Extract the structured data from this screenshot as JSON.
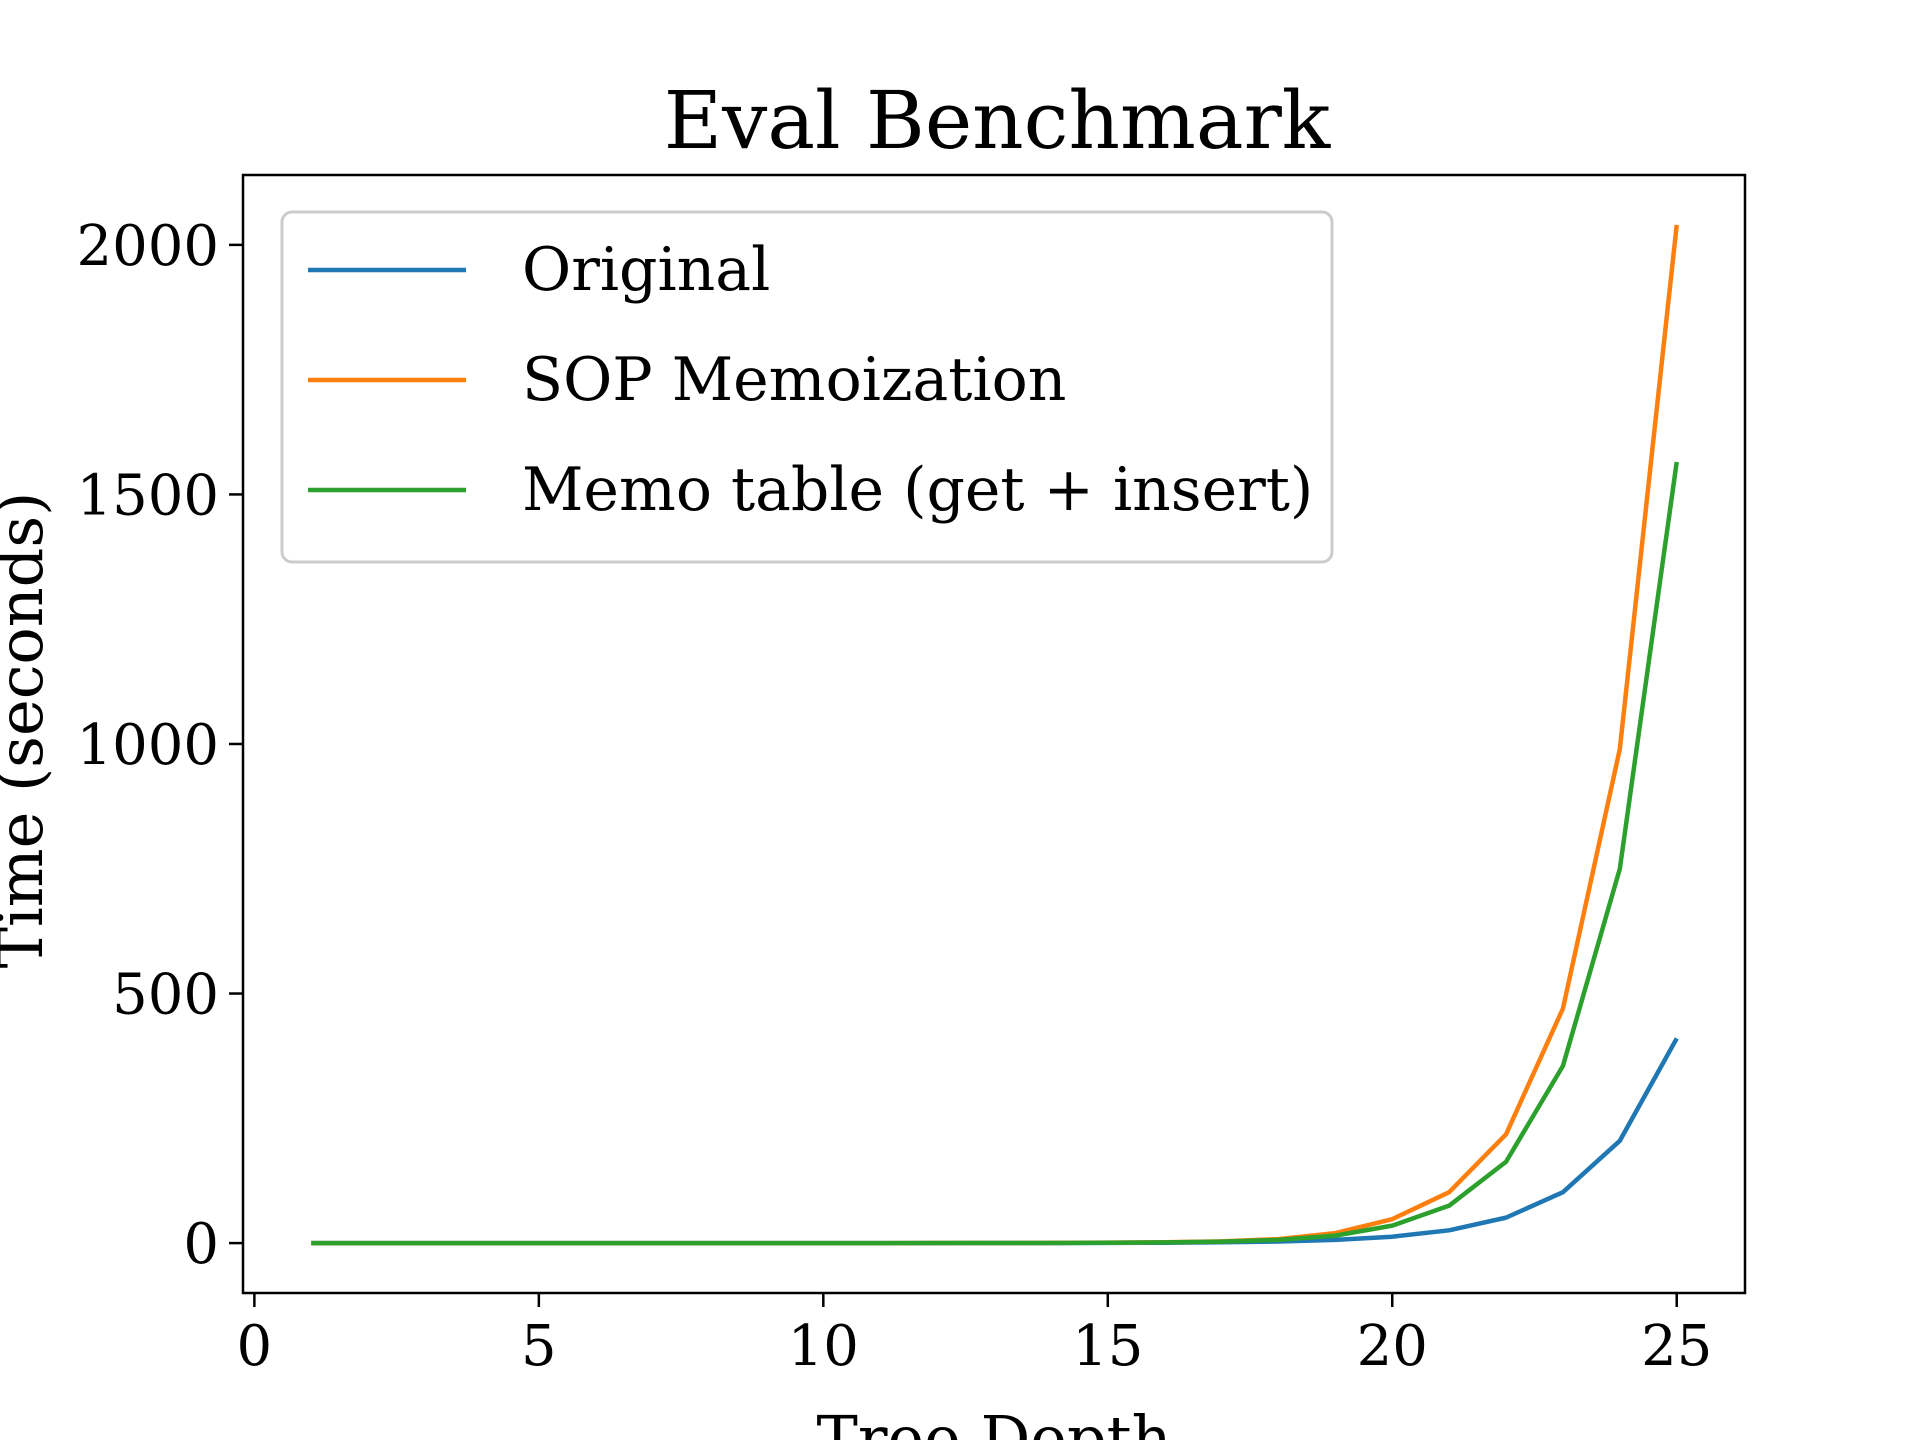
{
  "chart_data": {
    "type": "line",
    "title": "Eval Benchmark",
    "xlabel": "Tree Depth",
    "ylabel": "Time (seconds)",
    "xlim": [
      -0.2,
      26.2
    ],
    "ylim": [
      -100,
      2140
    ],
    "xticks": [
      0,
      5,
      10,
      15,
      20,
      25
    ],
    "yticks": [
      0,
      500,
      1000,
      1500,
      2000
    ],
    "legend_position": "upper-left",
    "x": [
      1,
      2,
      3,
      4,
      5,
      6,
      7,
      8,
      9,
      10,
      11,
      12,
      13,
      14,
      15,
      16,
      17,
      18,
      19,
      20,
      21,
      22,
      23,
      24,
      25
    ],
    "series": [
      {
        "name": "Original",
        "color": "#1f77b4",
        "values": [
          0,
          0,
          0,
          0,
          0,
          0,
          0,
          0,
          0,
          0,
          0,
          0,
          0.1,
          0.2,
          0.4,
          0.8,
          1.6,
          3.2,
          6.4,
          12.8,
          25.6,
          51,
          102,
          205,
          410
        ]
      },
      {
        "name": "SOP Memoization",
        "color": "#ff7f0e",
        "values": [
          0,
          0,
          0,
          0,
          0,
          0,
          0,
          0,
          0,
          0,
          0,
          0.1,
          0.2,
          0.4,
          0.9,
          1.8,
          3.5,
          8,
          20,
          48,
          102,
          218,
          470,
          990,
          2040
        ]
      },
      {
        "name": "Memo table (get + insert)",
        "color": "#2ca02c",
        "values": [
          0,
          0,
          0,
          0,
          0,
          0,
          0,
          0,
          0,
          0,
          0,
          0.1,
          0.2,
          0.3,
          0.7,
          1.5,
          3,
          6.5,
          15,
          35,
          75,
          163,
          355,
          750,
          1565
        ]
      }
    ]
  }
}
